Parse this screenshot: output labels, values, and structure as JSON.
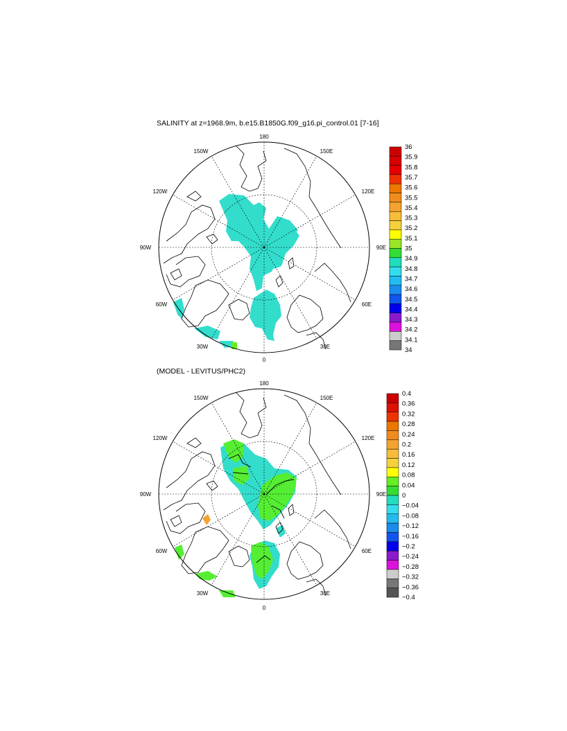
{
  "panel1": {
    "title": "SALINITY at z=1968.9m, b.e15.B1850G.f09_g16.pi_control.01 [7-16]",
    "lon_labels": {
      "top": "180",
      "bottom": "0",
      "left": "90W",
      "right": "90E",
      "ul": "150W",
      "ul2": "120W",
      "ur": "150E",
      "ur2": "120E",
      "ll": "60W",
      "ll2": "30W",
      "lr": "60E",
      "lr2": "30E"
    },
    "colorbar": {
      "labels": [
        "36",
        "35.9",
        "35.8",
        "35.7",
        "35.6",
        "35.5",
        "35.4",
        "35.3",
        "35.2",
        "35.1",
        "35",
        "34.9",
        "34.8",
        "34.7",
        "34.6",
        "34.5",
        "34.4",
        "34.3",
        "34.2",
        "34.1",
        "34"
      ],
      "colors": [
        "#cc0000",
        "#d90000",
        "#e60000",
        "#ee3300",
        "#ee7700",
        "#f08c1e",
        "#f5a330",
        "#f7bd3a",
        "#f5d23c",
        "#ffff00",
        "#9be628",
        "#33dd33",
        "#22ddbb",
        "#33ddee",
        "#22bbee",
        "#1a8cee",
        "#1155ee",
        "#0000ee",
        "#8a1acc",
        "#dd11dd",
        "#cccccc",
        "#777777"
      ]
    }
  },
  "panel2": {
    "title": "(MODEL - LEVITUS/PHC2)",
    "lon_labels": {
      "top": "180",
      "bottom": "0",
      "left": "90W",
      "right": "90E",
      "ul": "150W",
      "ul2": "120W",
      "ur": "150E",
      "ur2": "120E",
      "ll": "60W",
      "ll2": "30W",
      "lr": "60E",
      "lr2": "30E"
    },
    "colorbar": {
      "labels": [
        "0.4",
        "0.36",
        "0.32",
        "0.28",
        "0.24",
        "0.2",
        "0.16",
        "0.12",
        "0.08",
        "0.04",
        "0",
        "−0.04",
        "−0.08",
        "−0.12",
        "−0.16",
        "−0.2",
        "−0.24",
        "−0.28",
        "−0.32",
        "−0.36",
        "−0.4"
      ],
      "colors": [
        "#cc0000",
        "#dd1100",
        "#ee3300",
        "#ee7700",
        "#f08c1e",
        "#f5a330",
        "#f7bd3a",
        "#f5d23c",
        "#ffff00",
        "#66ee22",
        "#33dd33",
        "#22ddbb",
        "#33ddee",
        "#22bbee",
        "#1a8cee",
        "#1155ee",
        "#0000ee",
        "#8a1acc",
        "#dd11dd",
        "#cccccc",
        "#777777",
        "#555555"
      ]
    }
  }
}
